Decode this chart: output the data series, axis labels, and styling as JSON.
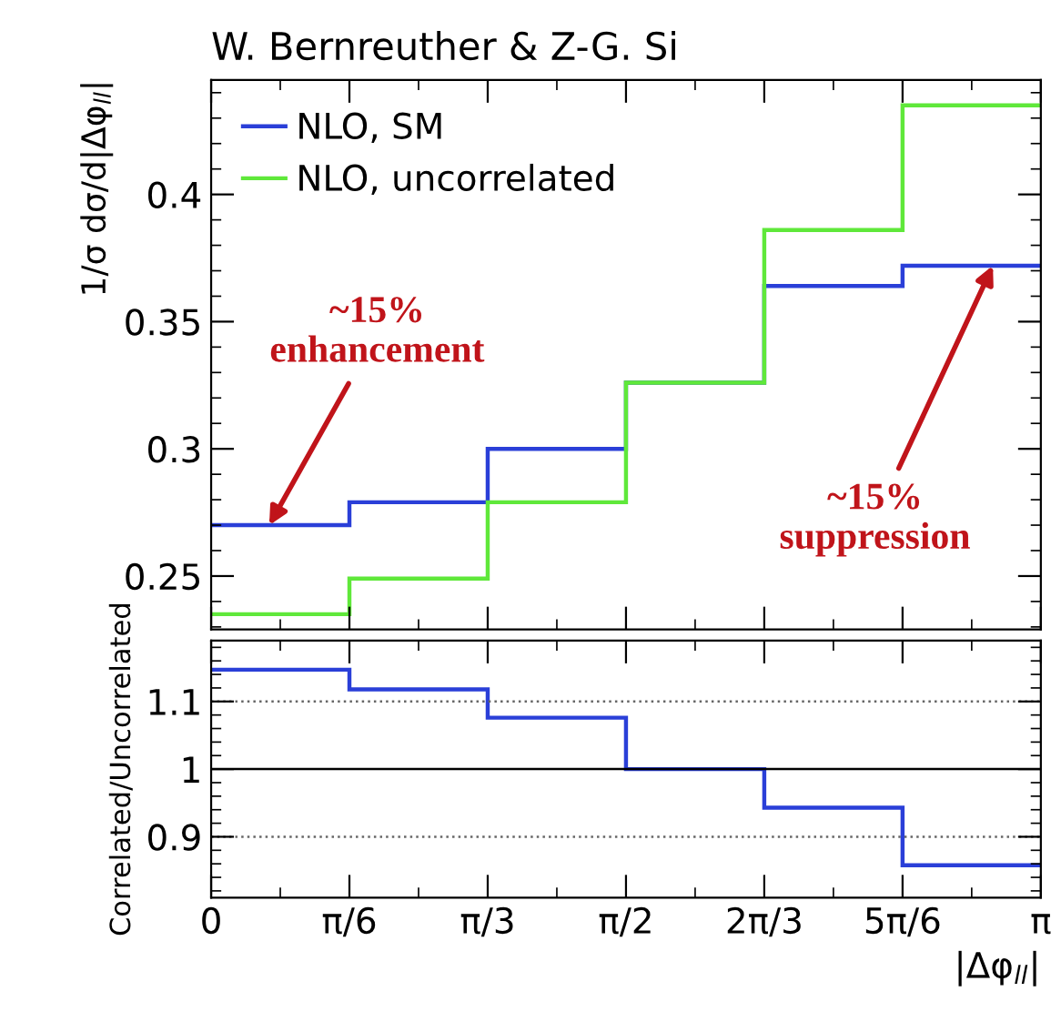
{
  "chart_data": [
    {
      "type": "histogram",
      "title": "W. Bernreuther & Z-G. Si",
      "ylabel": "1/σ dσ/d|Δφ$_{ll}$|",
      "bins": [
        0,
        0.5236,
        1.0472,
        1.5708,
        2.0944,
        2.618,
        3.1416
      ],
      "series": [
        {
          "name": "NLO, SM",
          "color": "#2a3fd8",
          "values": [
            0.27,
            0.279,
            0.3,
            0.326,
            0.364,
            0.372
          ]
        },
        {
          "name": "NLO, uncorrelated",
          "color": "#5fe83a",
          "values": [
            0.235,
            0.249,
            0.279,
            0.326,
            0.386,
            0.435
          ]
        }
      ],
      "xlim": [
        0,
        3.1416
      ],
      "ylim": [
        0.229,
        0.445
      ],
      "xticks": [
        {
          "value": 0,
          "label": null
        },
        {
          "value": 0.5236,
          "label": null
        },
        {
          "value": 1.0472,
          "label": null
        },
        {
          "value": 1.5708,
          "label": null
        },
        {
          "value": 2.0944,
          "label": null
        },
        {
          "value": 2.618,
          "label": null
        },
        {
          "value": 3.1416,
          "label": null
        }
      ],
      "yticks": [
        0.25,
        0.3,
        0.35,
        0.4
      ],
      "tick_labels": "y",
      "legend": "top left",
      "grid": false,
      "annotations": [
        {
          "text": "~15%\nenhancement",
          "x": 0.22,
          "y": 0.27
        },
        {
          "text": "~15%\nsuppression",
          "x": 2.96,
          "y": 0.372
        }
      ]
    },
    {
      "type": "histogram",
      "ylabel": "Correlated/Uncorrelated",
      "xlabel": "|Δφ$_{ll}$|",
      "bins": [
        0,
        0.5236,
        1.0472,
        1.5708,
        2.0944,
        2.618,
        3.1416
      ],
      "series": [
        {
          "color": "#2a3fd8",
          "values": [
            1.147,
            1.118,
            1.076,
            1.0,
            0.943,
            0.858
          ]
        }
      ],
      "xlim": [
        0,
        3.1416
      ],
      "ylim": [
        0.81,
        1.19
      ],
      "xticks": [
        0,
        {
          "value": 0.5236,
          "label": "π/6"
        },
        {
          "value": 1.0472,
          "label": "π/3"
        },
        {
          "value": 1.5708,
          "label": "π/2"
        },
        {
          "value": 2.0944,
          "label": "2π/3"
        },
        {
          "value": 2.618,
          "label": "5π/6"
        },
        {
          "value": 3.1416,
          "label": "π"
        }
      ],
      "yticks": [
        0.9,
        1,
        1.1
      ],
      "ref_lines": [
        {
          "axis": "y",
          "value": 1.1,
          "color": "#666666",
          "line_style": "dotted"
        },
        {
          "axis": "y",
          "value": 1,
          "color": "#000000",
          "line_style": "solid"
        },
        {
          "axis": "y",
          "value": 0.9,
          "color": "#666666",
          "line_style": "dotted"
        }
      ],
      "grid": false
    }
  ]
}
